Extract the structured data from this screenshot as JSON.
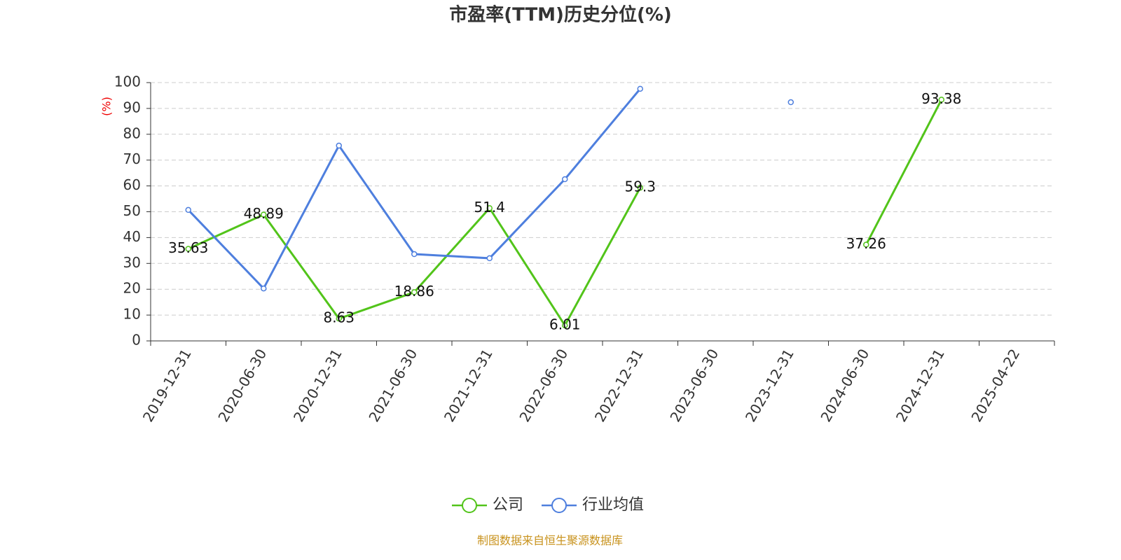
{
  "chart_data": {
    "type": "line",
    "title": "市盈率(TTM)历史分位(%)",
    "y_label": "(%)",
    "source": "制图数据来自恒生聚源数据库",
    "categories": [
      "2019-12-31",
      "2020-06-30",
      "2020-12-31",
      "2021-06-30",
      "2021-12-31",
      "2022-06-30",
      "2022-12-31",
      "2023-06-30",
      "2023-12-31",
      "2024-06-30",
      "2024-12-31",
      "2025-04-22"
    ],
    "series": [
      {
        "name": "公司",
        "color": "#52c41a",
        "values": [
          35.63,
          48.89,
          8.63,
          18.86,
          51.4,
          6.01,
          59.3,
          null,
          null,
          37.26,
          93.38,
          null
        ],
        "show_labels": true
      },
      {
        "name": "行业均值",
        "color": "#4e7fde",
        "values": [
          50.7,
          20.3,
          75.6,
          33.6,
          32,
          62.6,
          97.6,
          null,
          92.4,
          null,
          null,
          null
        ],
        "show_labels": false
      }
    ],
    "ylim": [
      0,
      100
    ],
    "yticks": [
      0,
      10,
      20,
      30,
      40,
      50,
      60,
      70,
      80,
      90,
      100
    ],
    "grid": true,
    "legend": "bottom"
  }
}
